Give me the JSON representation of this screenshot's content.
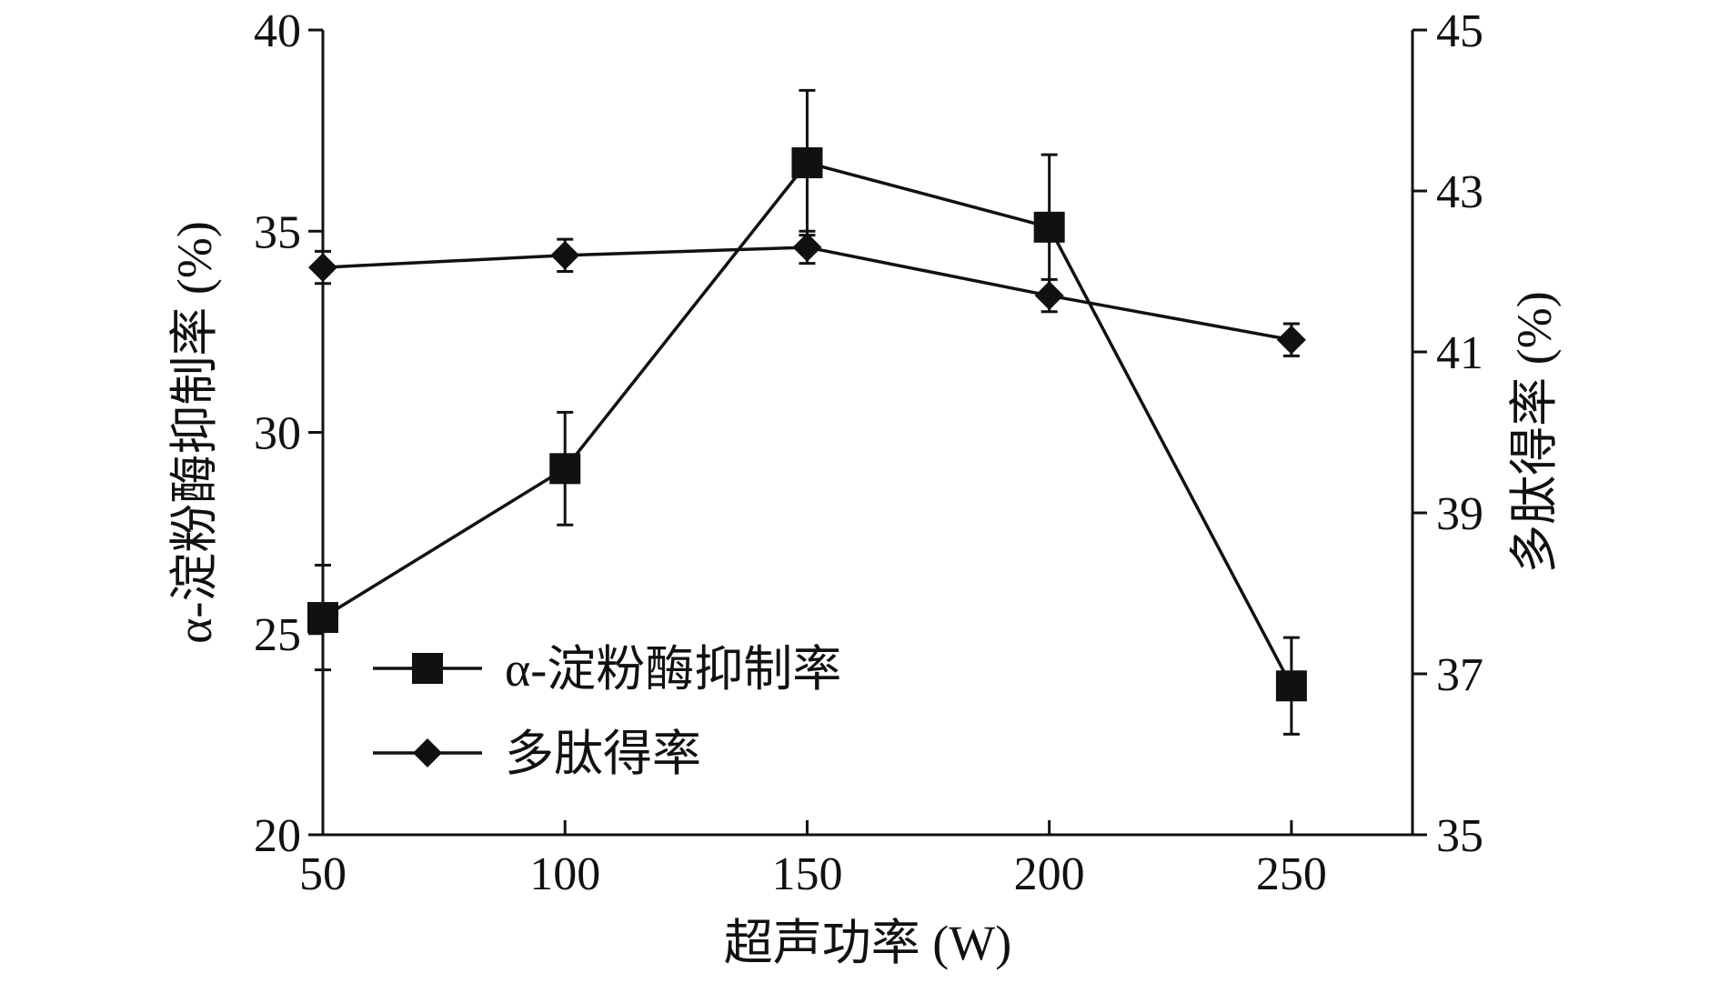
{
  "chart_data": {
    "type": "line",
    "x": [
      50,
      100,
      150,
      200,
      250
    ],
    "xlabel": "超声功率 (W)",
    "xlim": [
      50,
      275
    ],
    "xticks": [
      "50",
      "100",
      "150",
      "200",
      "250"
    ],
    "ylabel_left": "α-淀粉酶抑制率 (%)",
    "ylim_left": [
      20,
      40
    ],
    "yticks_left": [
      "20",
      "25",
      "30",
      "35",
      "40"
    ],
    "ylabel_right": "多肽得率 (%)",
    "ylim_right": [
      35,
      45
    ],
    "yticks_right": [
      "35",
      "37",
      "39",
      "41",
      "43",
      "45"
    ],
    "legend_position": "lower-left",
    "grid": false,
    "series": [
      {
        "name": "α-淀粉酶抑制率",
        "axis": "left",
        "marker": "square",
        "color": "#111111",
        "values": [
          25.4,
          29.1,
          36.7,
          35.1,
          23.7
        ],
        "errors": [
          1.3,
          1.4,
          1.8,
          1.8,
          1.2
        ]
      },
      {
        "name": "多肽得率",
        "axis": "right",
        "marker": "diamond",
        "color": "#111111",
        "values": [
          42.05,
          42.2,
          42.3,
          41.7,
          41.15
        ],
        "errors": [
          0.2,
          0.2,
          0.2,
          0.2,
          0.2
        ]
      }
    ]
  }
}
